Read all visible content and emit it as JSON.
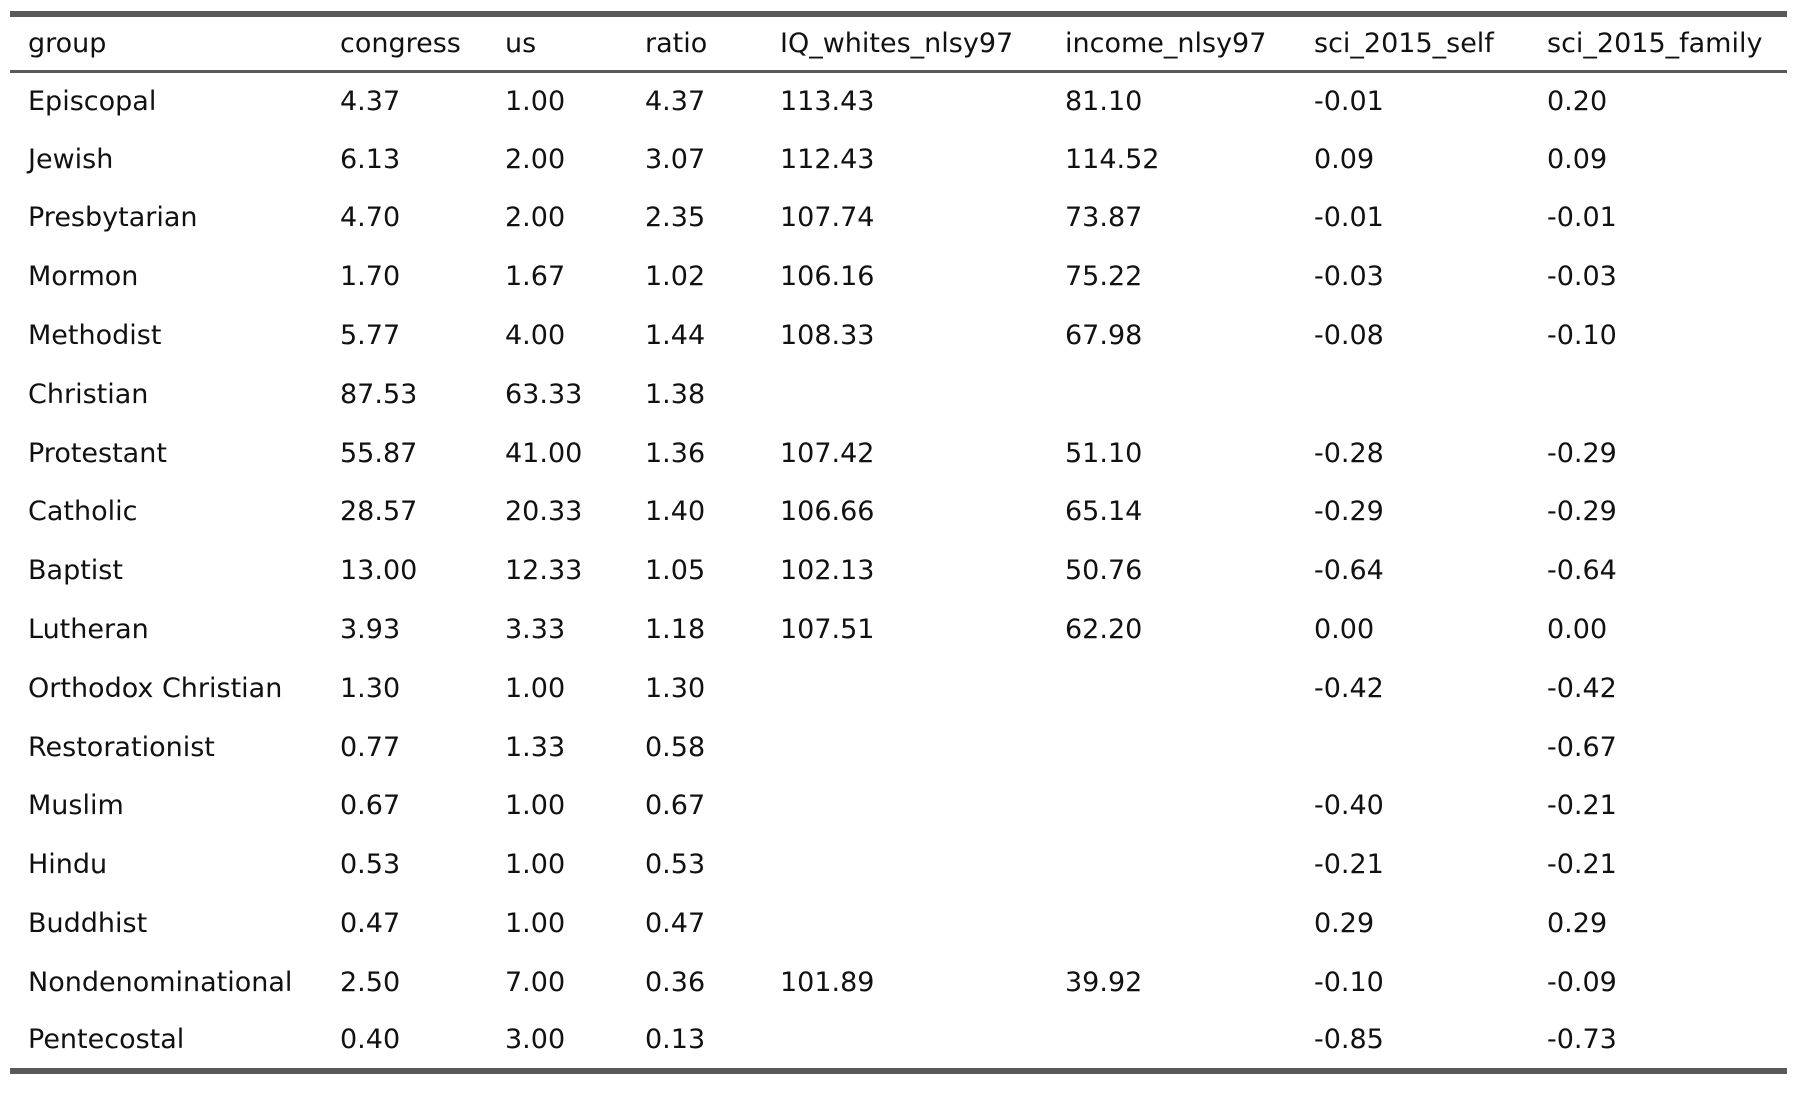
{
  "style": {
    "rule_color": "#595959",
    "text_color": "#111111",
    "background": "#ffffff"
  },
  "chart_data": {
    "type": "table",
    "title": "",
    "columns": [
      "group",
      "congress",
      "us",
      "ratio",
      "IQ_whites_nlsy97",
      "income_nlsy97",
      "sci_2015_self",
      "sci_2015_family"
    ],
    "rows": [
      [
        "Episcopal",
        "4.37",
        "1.00",
        "4.37",
        "113.43",
        "81.10",
        "-0.01",
        "0.20"
      ],
      [
        "Jewish",
        "6.13",
        "2.00",
        "3.07",
        "112.43",
        "114.52",
        "0.09",
        "0.09"
      ],
      [
        "Presbytarian",
        "4.70",
        "2.00",
        "2.35",
        "107.74",
        "73.87",
        "-0.01",
        "-0.01"
      ],
      [
        "Mormon",
        "1.70",
        "1.67",
        "1.02",
        "106.16",
        "75.22",
        "-0.03",
        "-0.03"
      ],
      [
        "Methodist",
        "5.77",
        "4.00",
        "1.44",
        "108.33",
        "67.98",
        "-0.08",
        "-0.10"
      ],
      [
        "Christian",
        "87.53",
        "63.33",
        "1.38",
        "",
        "",
        "",
        ""
      ],
      [
        "Protestant",
        "55.87",
        "41.00",
        "1.36",
        "107.42",
        "51.10",
        "-0.28",
        "-0.29"
      ],
      [
        "Catholic",
        "28.57",
        "20.33",
        "1.40",
        "106.66",
        "65.14",
        "-0.29",
        "-0.29"
      ],
      [
        "Baptist",
        "13.00",
        "12.33",
        "1.05",
        "102.13",
        "50.76",
        "-0.64",
        "-0.64"
      ],
      [
        "Lutheran",
        "3.93",
        "3.33",
        "1.18",
        "107.51",
        "62.20",
        "0.00",
        "0.00"
      ],
      [
        "Orthodox Christian",
        "1.30",
        "1.00",
        "1.30",
        "",
        "",
        "-0.42",
        "-0.42"
      ],
      [
        "Restorationist",
        "0.77",
        "1.33",
        "0.58",
        "",
        "",
        "",
        "-0.67"
      ],
      [
        "Muslim",
        "0.67",
        "1.00",
        "0.67",
        "",
        "",
        "-0.40",
        "-0.21"
      ],
      [
        "Hindu",
        "0.53",
        "1.00",
        "0.53",
        "",
        "",
        "-0.21",
        "-0.21"
      ],
      [
        "Buddhist",
        "0.47",
        "1.00",
        "0.47",
        "",
        "",
        "0.29",
        "0.29"
      ],
      [
        "Nondenominational",
        "2.50",
        "7.00",
        "0.36",
        "101.89",
        "39.92",
        "-0.10",
        "-0.09"
      ],
      [
        "Pentecostal",
        "0.40",
        "3.00",
        "0.13",
        "",
        "",
        "-0.85",
        "-0.73"
      ]
    ]
  }
}
